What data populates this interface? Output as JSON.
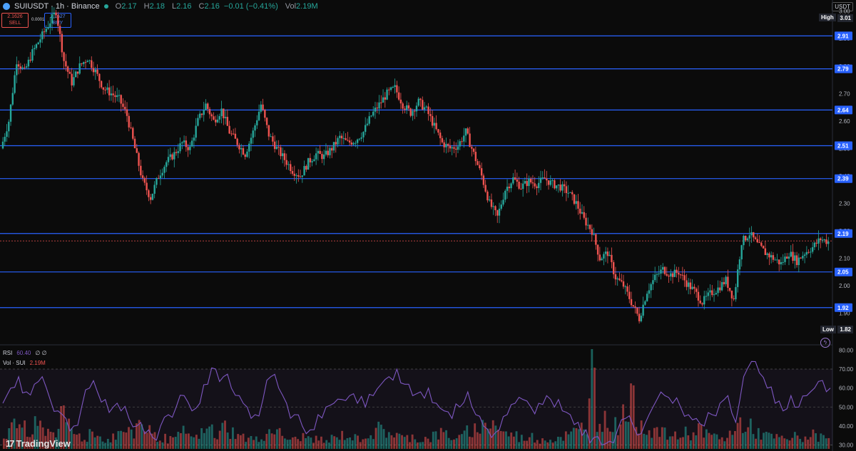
{
  "header": {
    "symbol": "SUIUSDT · 1h · Binance",
    "open_label": "O",
    "open": "2.17",
    "high_label": "H",
    "high": "2.18",
    "low_label": "L",
    "low": "2.16",
    "close_label": "C",
    "close": "2.16",
    "change": "−0.01 (−0.41%)",
    "vol_label": "Vol",
    "vol": "2.19M",
    "currency": "USDT"
  },
  "trade": {
    "sell_price": "2.1626",
    "sell_label": "SELL",
    "buy_price": "2.1627",
    "buy_label": "BUY",
    "spread": "0.0001"
  },
  "indicators": {
    "rsi_label": "RSI",
    "rsi_value": "60.40",
    "rsi_extra": "∅ ∅",
    "vol_label": "Vol · SUI",
    "vol_value": "2.19M"
  },
  "branding": {
    "logo_text": "TradingView",
    "logo_mark": "17"
  },
  "chart_data": {
    "type": "candlestick",
    "price_axis": {
      "ticks": [
        "3.00",
        "2.90",
        "2.80",
        "2.70",
        "2.60",
        "2.50",
        "2.40",
        "2.30",
        "2.20",
        "2.10",
        "2.00",
        "1.90"
      ],
      "ylim": [
        1.8,
        3.02
      ],
      "high_label": "High",
      "high_value": "3.01",
      "low_label": "Low",
      "low_value": "1.82"
    },
    "horizontal_levels": [
      "2.91",
      "2.79",
      "2.64",
      "2.51",
      "2.39",
      "2.19",
      "2.05",
      "1.92"
    ],
    "current_price_line": 2.163,
    "price_path": [
      2.5,
      2.6,
      2.82,
      2.78,
      2.85,
      2.9,
      2.95,
      3.0,
      2.82,
      2.74,
      2.8,
      2.83,
      2.78,
      2.72,
      2.7,
      2.68,
      2.62,
      2.5,
      2.38,
      2.32,
      2.4,
      2.45,
      2.48,
      2.52,
      2.5,
      2.6,
      2.66,
      2.6,
      2.64,
      2.56,
      2.52,
      2.48,
      2.56,
      2.66,
      2.55,
      2.5,
      2.46,
      2.42,
      2.4,
      2.45,
      2.48,
      2.47,
      2.5,
      2.54,
      2.52,
      2.53,
      2.56,
      2.62,
      2.66,
      2.7,
      2.72,
      2.66,
      2.63,
      2.67,
      2.64,
      2.58,
      2.52,
      2.5,
      2.51,
      2.56,
      2.48,
      2.4,
      2.3,
      2.25,
      2.35,
      2.39,
      2.36,
      2.38,
      2.37,
      2.39,
      2.37,
      2.36,
      2.34,
      2.3,
      2.24,
      2.2,
      2.1,
      2.12,
      2.03,
      2.0,
      1.94,
      1.88,
      1.98,
      2.03,
      2.06,
      2.04,
      2.05,
      2.01,
      1.98,
      1.94,
      1.97,
      1.99,
      2.02,
      1.95,
      2.16,
      2.19,
      2.15,
      2.12,
      2.1,
      2.08,
      2.12,
      2.09,
      2.12,
      2.14,
      2.17,
      2.16
    ],
    "rsi": {
      "ticks": [
        "80.00",
        "70.00",
        "60.00",
        "50.00",
        "40.00",
        "30.00"
      ],
      "ylim": [
        28,
        82
      ],
      "upper_band": 70,
      "lower_band": 30,
      "values": [
        52,
        60,
        66,
        58,
        62,
        66,
        54,
        48,
        44,
        40,
        50,
        60,
        58,
        54,
        50,
        48,
        44,
        40,
        36,
        34,
        40,
        46,
        50,
        56,
        48,
        52,
        62,
        70,
        66,
        60,
        56,
        50,
        46,
        54,
        66,
        60,
        52,
        46,
        40,
        38,
        46,
        50,
        52,
        54,
        56,
        52,
        50,
        56,
        62,
        66,
        70,
        62,
        56,
        58,
        60,
        52,
        48,
        44,
        50,
        58,
        46,
        40,
        34,
        38,
        46,
        52,
        54,
        50,
        52,
        56,
        50,
        48,
        46,
        42,
        38,
        34,
        30,
        32,
        38,
        44,
        40,
        36,
        46,
        54,
        56,
        52,
        50,
        46,
        44,
        40,
        46,
        52,
        56,
        42,
        66,
        74,
        68,
        60,
        52,
        48,
        56,
        50,
        56,
        60,
        64,
        60
      ]
    },
    "volume": {
      "label": "Vol · SUI",
      "values": [
        20,
        28,
        35,
        18,
        30,
        26,
        22,
        40,
        30,
        18,
        14,
        22,
        16,
        12,
        18,
        24,
        20,
        34,
        28,
        16,
        14,
        12,
        16,
        22,
        14,
        20,
        26,
        18,
        30,
        22,
        16,
        14,
        12,
        18,
        26,
        20,
        14,
        12,
        16,
        14,
        12,
        10,
        14,
        18,
        16,
        14,
        18,
        20,
        26,
        22,
        18,
        14,
        16,
        12,
        14,
        18,
        20,
        16,
        14,
        22,
        26,
        30,
        36,
        28,
        20,
        18,
        14,
        16,
        12,
        14,
        12,
        16,
        18,
        22,
        28,
        110,
        40,
        36,
        30,
        48,
        60,
        36,
        28,
        24,
        20,
        18,
        16,
        22,
        20,
        26,
        18,
        16,
        14,
        20,
        34,
        28,
        22,
        18,
        16,
        14,
        12,
        16,
        14,
        18,
        16,
        14
      ],
      "colors": {
        "up": "#26a69a",
        "down": "#ef5350"
      }
    },
    "colors": {
      "up": "#26a69a",
      "down": "#ef5350",
      "level": "#2962ff",
      "rsi": "#7e57c2"
    }
  }
}
